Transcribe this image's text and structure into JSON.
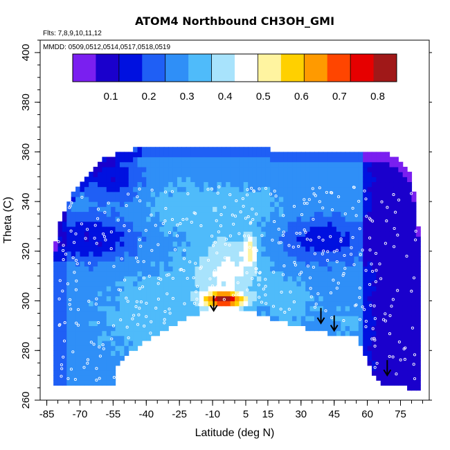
{
  "chart_data": {
    "type": "heatmap",
    "title": "ATOM4 Northbound CH3OH_GMI",
    "flights_note": "Flts: 7,8,9,10,11,12",
    "dates_note": "MMDD: 0509,0512,0514,0517,0518,0519",
    "xlabel": "Latitude (deg N)",
    "ylabel": "Theta (C)",
    "xlim": [
      -88,
      88
    ],
    "ylim": [
      260,
      405
    ],
    "x_ticks": [
      -85,
      -70,
      -55,
      -40,
      -25,
      -10,
      5,
      15,
      30,
      45,
      60,
      75
    ],
    "y_ticks": [
      260,
      280,
      300,
      320,
      340,
      360,
      380,
      400
    ],
    "colorbar": {
      "range": [
        0.0,
        0.85
      ],
      "ticks": [
        0.1,
        0.2,
        0.3,
        0.4,
        0.5,
        0.6,
        0.7,
        0.8
      ],
      "colors": [
        "#7a1ff0",
        "#1a00cc",
        "#0011e0",
        "#1f5ff5",
        "#2f8ff7",
        "#4fbbfa",
        "#a8e3fc",
        "#ffffff",
        "#fff4a0",
        "#ffd000",
        "#ff9a00",
        "#ff4500",
        "#e60000",
        "#a01818"
      ]
    },
    "surface_lower_boundary": [
      [
        -82,
        266
      ],
      [
        -54,
        266
      ],
      [
        -54,
        274
      ],
      [
        -42,
        283
      ],
      [
        -28,
        290
      ],
      [
        -12,
        297
      ],
      [
        -2,
        298
      ],
      [
        8,
        296
      ],
      [
        20,
        292
      ],
      [
        35,
        288
      ],
      [
        48,
        286
      ],
      [
        55,
        286
      ],
      [
        58,
        281
      ],
      [
        62,
        272
      ],
      [
        66,
        267
      ],
      [
        70,
        266
      ],
      [
        74,
        266
      ],
      [
        78,
        265
      ],
      [
        82,
        265
      ]
    ],
    "coverage_top_boundary": [
      [
        -82,
        320
      ],
      [
        -78,
        335
      ],
      [
        -74,
        342
      ],
      [
        -68,
        350
      ],
      [
        -60,
        357
      ],
      [
        -52,
        360
      ],
      [
        -45,
        361
      ],
      [
        -30,
        361
      ],
      [
        15,
        361
      ],
      [
        16,
        360
      ],
      [
        55,
        360
      ],
      [
        68,
        360
      ],
      [
        75,
        356
      ],
      [
        80,
        350
      ],
      [
        83,
        330
      ],
      [
        84,
        320
      ]
    ],
    "annotations": {
      "arrows_at": [
        [
          -9.5,
          296
        ],
        [
          39,
          291
        ],
        [
          45,
          288
        ],
        [
          69,
          270
        ]
      ]
    }
  }
}
